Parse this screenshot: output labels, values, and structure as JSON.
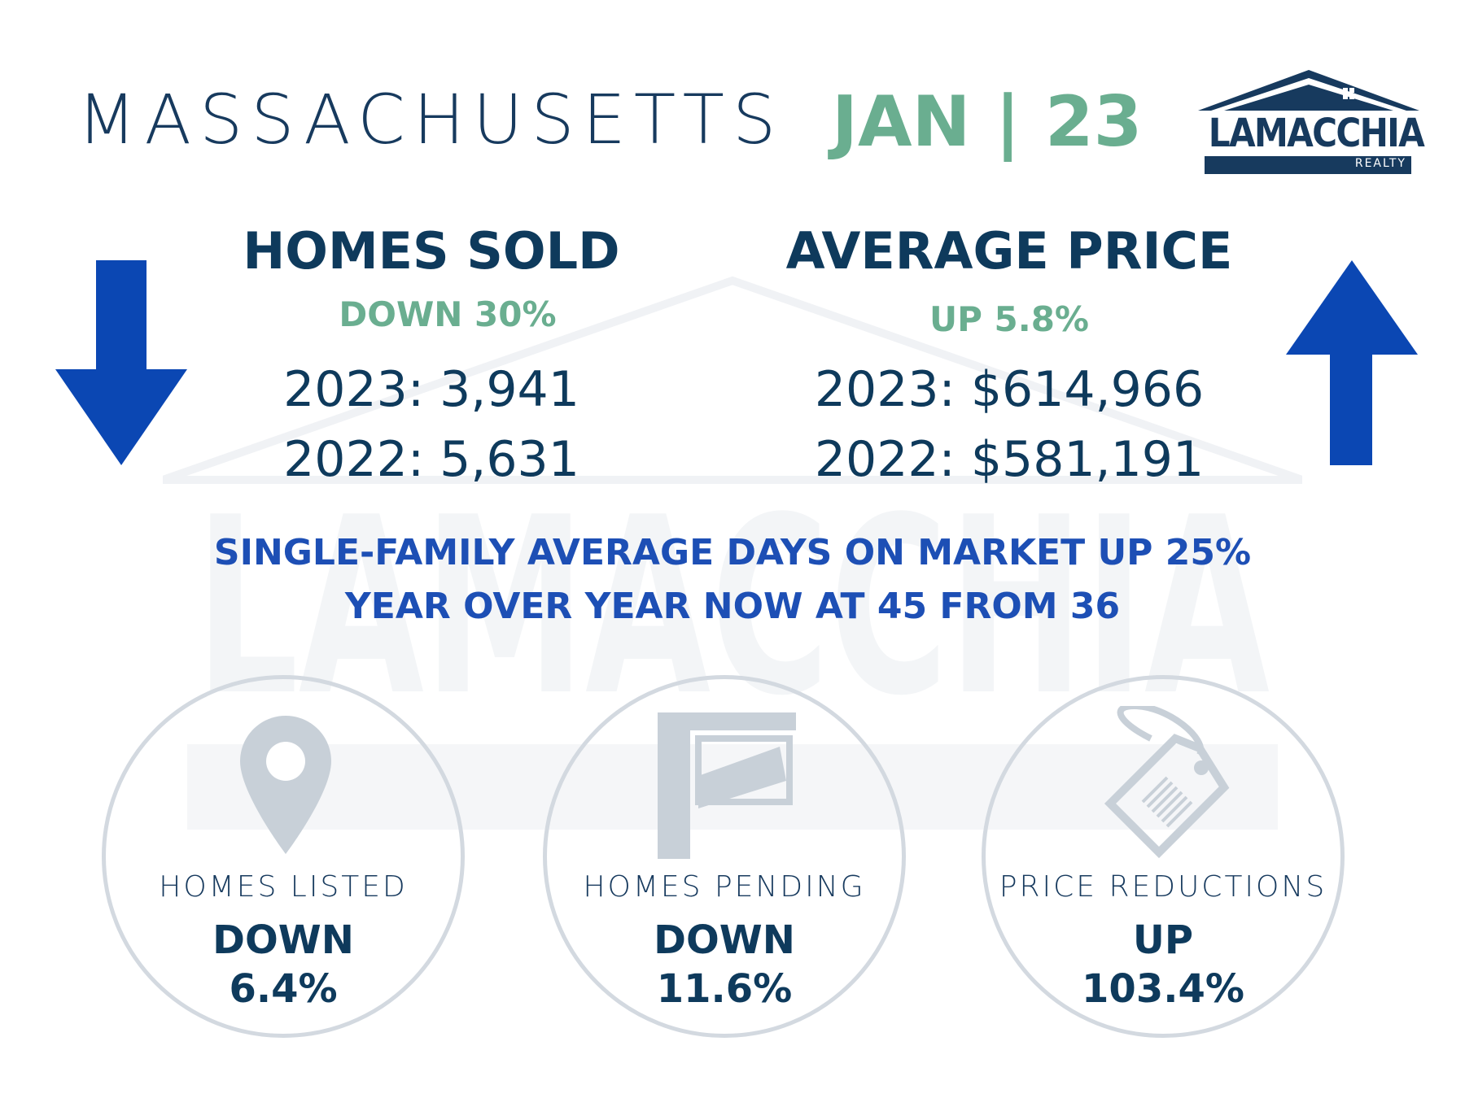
{
  "header": {
    "state": "MASSACHUSETTS",
    "date": "JAN | 23",
    "logo": {
      "name": "LAMACCHIA",
      "sub": "REALTY"
    }
  },
  "homes_sold": {
    "heading": "HOMES SOLD",
    "change": "DOWN 30%",
    "year_2023": "2023: 3,941",
    "year_2022": "2022: 5,631",
    "arrow": "arrow-down"
  },
  "average_price": {
    "heading": "AVERAGE PRICE",
    "change": "UP 5.8%",
    "year_2023": "2023: $614,966",
    "year_2022": "2022: $581,191",
    "arrow": "arrow-up"
  },
  "banner": {
    "line1": "SINGLE-FAMILY AVERAGE DAYS ON MARKET UP 25%",
    "line2": "YEAR OVER YEAR NOW AT 45 FROM 36"
  },
  "metrics": [
    {
      "label": "HOMES LISTED",
      "direction": "DOWN",
      "value": "6.4%",
      "icon": "map-pin-icon"
    },
    {
      "label": "HOMES PENDING",
      "direction": "DOWN",
      "value": "11.6%",
      "icon": "sign-post-icon"
    },
    {
      "label": "PRICE REDUCTIONS",
      "direction": "UP",
      "value": "103.4%",
      "icon": "price-tag-icon"
    }
  ],
  "colors": {
    "navy": "#0e3a5c",
    "green": "#6aae90",
    "blue": "#1d4fb5",
    "arrow": "#0b47b3",
    "icon_gray": "#c8d0d8"
  }
}
